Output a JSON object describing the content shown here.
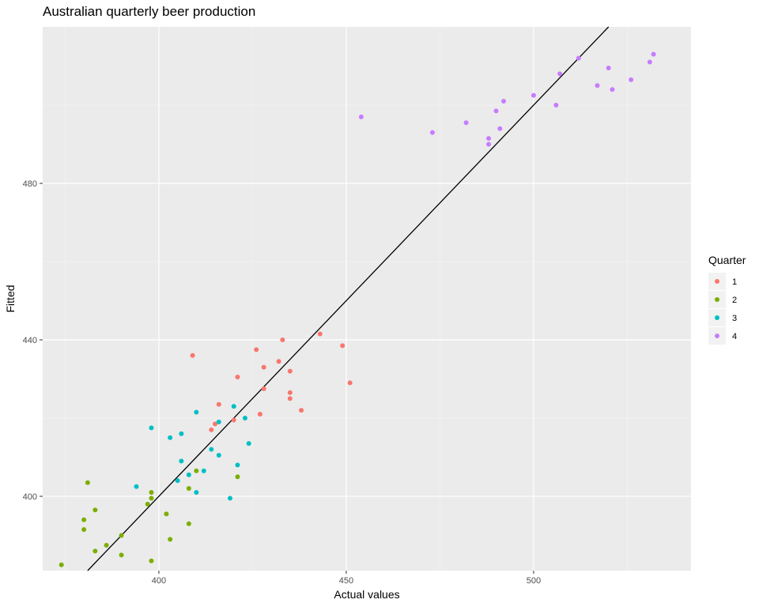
{
  "chart_data": {
    "type": "scatter",
    "title": "Australian quarterly beer production",
    "xlabel": "Actual values",
    "ylabel": "Fitted",
    "xlim": [
      369,
      542
    ],
    "ylim": [
      381,
      520
    ],
    "x_ticks": [
      400,
      450,
      500
    ],
    "x_minor": [
      375,
      425,
      475,
      525
    ],
    "y_ticks": [
      400,
      440,
      480
    ],
    "y_minor": [
      380,
      420,
      460,
      500
    ],
    "x_tick_labels": [
      "400",
      "450",
      "500"
    ],
    "y_tick_labels": [
      "400",
      "440",
      "480"
    ],
    "grid": true,
    "legend": {
      "title": "Quarter",
      "position": "right"
    },
    "reference_line": {
      "slope": 1,
      "intercept": 0
    },
    "series": [
      {
        "name": "1",
        "color": "#F8766D",
        "points": [
          [
            409,
            436
          ],
          [
            414,
            417
          ],
          [
            415,
            418.5
          ],
          [
            416,
            423.5
          ],
          [
            420,
            419.5
          ],
          [
            421,
            430.5
          ],
          [
            426,
            437.5
          ],
          [
            427,
            421
          ],
          [
            428,
            433
          ],
          [
            428,
            427.5
          ],
          [
            432,
            434.5
          ],
          [
            433,
            440
          ],
          [
            435,
            432
          ],
          [
            435,
            426.5
          ],
          [
            435,
            425
          ],
          [
            438,
            422
          ],
          [
            443,
            441.5
          ],
          [
            449,
            438.5
          ],
          [
            451,
            429
          ]
        ]
      },
      {
        "name": "2",
        "color": "#7CAE00",
        "points": [
          [
            374,
            382.5
          ],
          [
            380,
            394
          ],
          [
            380,
            391.5
          ],
          [
            381,
            403.5
          ],
          [
            383,
            396.5
          ],
          [
            383,
            386
          ],
          [
            386,
            387.5
          ],
          [
            390,
            390
          ],
          [
            390,
            385
          ],
          [
            397,
            398
          ],
          [
            398,
            399.5
          ],
          [
            398,
            401
          ],
          [
            398,
            383.5
          ],
          [
            402,
            395.5
          ],
          [
            403,
            389
          ],
          [
            408,
            402
          ],
          [
            408,
            393
          ],
          [
            410,
            406.5
          ],
          [
            421,
            405
          ]
        ]
      },
      {
        "name": "3",
        "color": "#00BFC4",
        "points": [
          [
            394,
            402.5
          ],
          [
            398,
            417.5
          ],
          [
            403,
            415
          ],
          [
            405,
            404
          ],
          [
            406,
            416
          ],
          [
            406,
            409
          ],
          [
            408,
            405.5
          ],
          [
            410,
            401
          ],
          [
            410,
            421.5
          ],
          [
            412,
            406.5
          ],
          [
            414,
            412
          ],
          [
            416,
            410.5
          ],
          [
            416,
            419
          ],
          [
            419,
            399.5
          ],
          [
            420,
            423
          ],
          [
            421,
            408
          ],
          [
            423,
            420
          ],
          [
            424,
            413.5
          ]
        ]
      },
      {
        "name": "4",
        "color": "#C77CFF",
        "points": [
          [
            454,
            497
          ],
          [
            473,
            493
          ],
          [
            482,
            495.5
          ],
          [
            488,
            491.5
          ],
          [
            488,
            490
          ],
          [
            490,
            498.5
          ],
          [
            491,
            494
          ],
          [
            492,
            501
          ],
          [
            500,
            502.5
          ],
          [
            506,
            500
          ],
          [
            507,
            508
          ],
          [
            512,
            512
          ],
          [
            517,
            505
          ],
          [
            520,
            509.5
          ],
          [
            521,
            504
          ],
          [
            526,
            506.5
          ],
          [
            531,
            511
          ],
          [
            532,
            513
          ]
        ]
      }
    ]
  }
}
